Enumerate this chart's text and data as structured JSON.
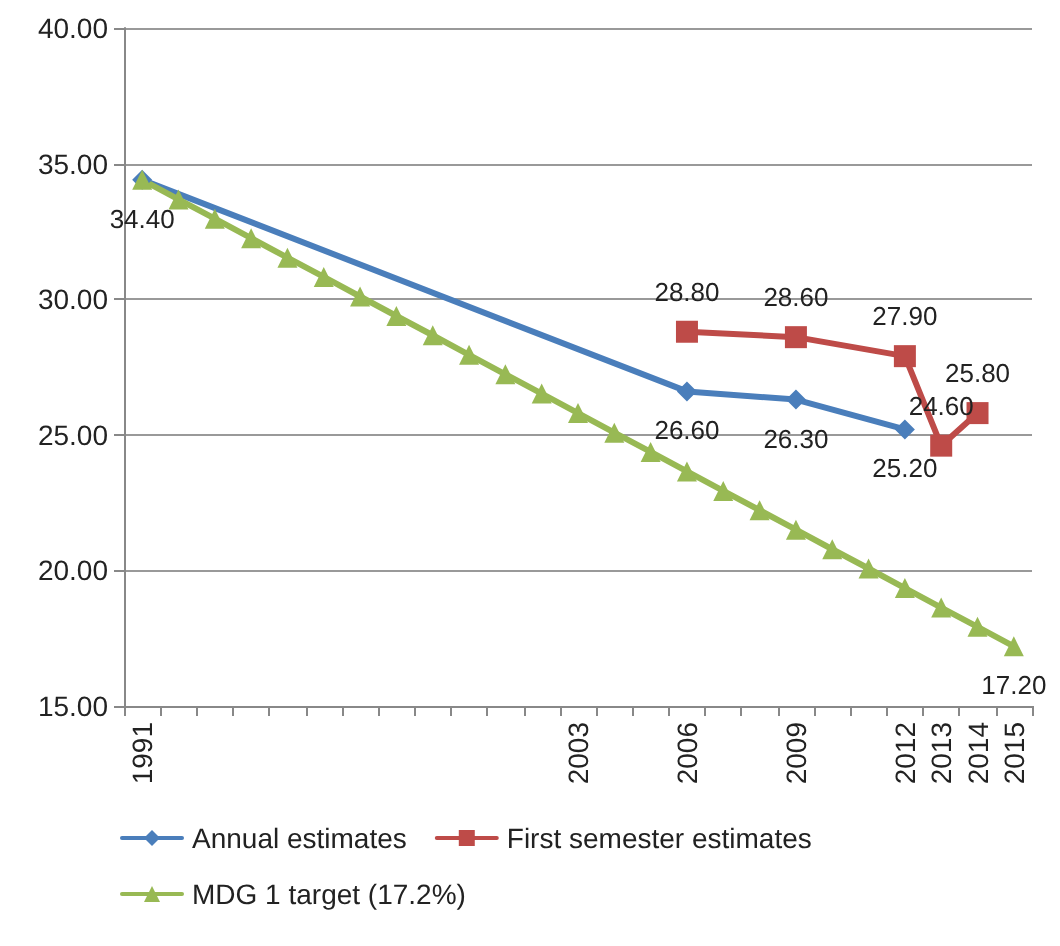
{
  "chart_data": {
    "type": "line",
    "categories": [
      "1991",
      null,
      null,
      null,
      null,
      null,
      null,
      null,
      null,
      null,
      null,
      null,
      "2003",
      null,
      null,
      "2006",
      null,
      null,
      "2009",
      null,
      null,
      "2012",
      "2013",
      "2014",
      "2015"
    ],
    "series": [
      {
        "name": "Annual estimates",
        "color": "#4a7ebb",
        "marker": "diamond",
        "values": [
          34.4,
          null,
          null,
          null,
          null,
          null,
          null,
          null,
          null,
          null,
          null,
          null,
          null,
          null,
          null,
          26.6,
          null,
          null,
          26.3,
          null,
          null,
          25.2,
          null,
          null,
          null
        ],
        "value_labels": [
          "34.40",
          null,
          null,
          null,
          null,
          null,
          null,
          null,
          null,
          null,
          null,
          null,
          null,
          null,
          null,
          "26.60",
          null,
          null,
          "26.30",
          null,
          null,
          "25.20",
          null,
          null,
          null
        ]
      },
      {
        "name": "First semester estimates",
        "color": "#be4b48",
        "marker": "square",
        "values": [
          null,
          null,
          null,
          null,
          null,
          null,
          null,
          null,
          null,
          null,
          null,
          null,
          null,
          null,
          null,
          28.8,
          null,
          null,
          28.6,
          null,
          null,
          27.9,
          24.6,
          25.8,
          null
        ],
        "value_labels": [
          null,
          null,
          null,
          null,
          null,
          null,
          null,
          null,
          null,
          null,
          null,
          null,
          null,
          null,
          null,
          "28.80",
          null,
          null,
          "28.60",
          null,
          null,
          "27.90",
          "24.60",
          "25.80",
          null
        ]
      },
      {
        "name": "MDG 1 target (17.2%)",
        "color": "#98b954",
        "marker": "triangle",
        "values": [
          34.4,
          33.68,
          32.97,
          32.25,
          31.53,
          30.82,
          30.1,
          29.38,
          28.67,
          27.95,
          27.23,
          26.52,
          25.8,
          25.08,
          24.37,
          23.65,
          22.93,
          22.22,
          21.5,
          20.78,
          20.07,
          19.35,
          18.63,
          17.92,
          17.2
        ],
        "value_labels": [
          null,
          null,
          null,
          null,
          null,
          null,
          null,
          null,
          null,
          null,
          null,
          null,
          null,
          null,
          null,
          null,
          null,
          null,
          null,
          null,
          null,
          null,
          null,
          null,
          "17.20"
        ]
      }
    ],
    "ylim": [
      15,
      40
    ],
    "yticks": [
      {
        "value": 15,
        "label": "15.00"
      },
      {
        "value": 20,
        "label": "20.00"
      },
      {
        "value": 25,
        "label": "25.00"
      },
      {
        "value": 30,
        "label": "30.00"
      },
      {
        "value": 35,
        "label": "35.00"
      },
      {
        "value": 40,
        "label": "40.00"
      }
    ],
    "grid": "y",
    "legend": "bottom",
    "line_style": "solid"
  }
}
